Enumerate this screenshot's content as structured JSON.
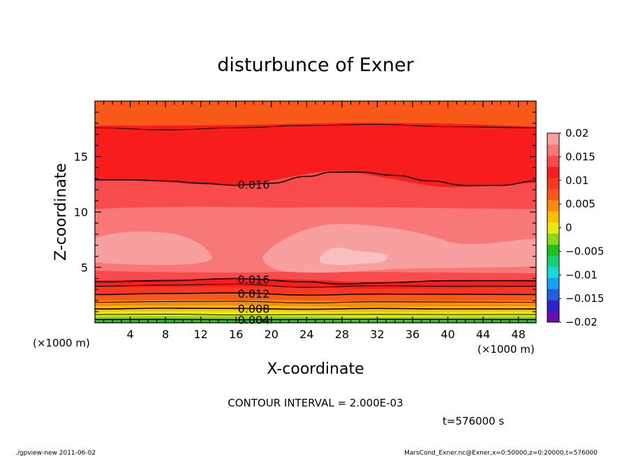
{
  "chart_data": {
    "type": "heatmap",
    "title": "disturbunce of Exner",
    "xlabel": "X-coordinate",
    "ylabel": "Z-coordinate",
    "x_unit_label": "(×1000 m)",
    "y_unit_label": "(×1000 m)",
    "xlim": [
      0,
      50
    ],
    "ylim": [
      0,
      20
    ],
    "x_ticks": [
      4,
      8,
      12,
      16,
      20,
      24,
      28,
      32,
      36,
      40,
      44,
      48
    ],
    "y_ticks": [
      5,
      10,
      15
    ],
    "colorbar": {
      "min": -0.02,
      "max": 0.02,
      "step": 0.0025,
      "labels": [
        "0.02",
        "0.015",
        "0.01",
        "0.005",
        "0",
        "−0.005",
        "−0.01",
        "−0.015",
        "−0.02"
      ],
      "colors": [
        "#6a0dad",
        "#3020c8",
        "#1f5fe0",
        "#1aa0f0",
        "#18d8d8",
        "#18d070",
        "#22c020",
        "#8ad818",
        "#e8e818",
        "#f8c000",
        "#f88a10",
        "#f85818",
        "#f83820",
        "#f81c1c",
        "#f84c4c",
        "#f87878",
        "#f8a0a0"
      ]
    },
    "contour_interval": "2.000E-03",
    "contours": [
      {
        "value": 0.004,
        "label": "0.004",
        "x": [
          0,
          8,
          16,
          24,
          32,
          40,
          50
        ],
        "z": [
          0.3,
          0.32,
          0.28,
          0.3,
          0.32,
          0.3,
          0.3
        ]
      },
      {
        "value": 0.006,
        "label": "",
        "x": [
          0,
          8,
          16,
          24,
          32,
          40,
          50
        ],
        "z": [
          0.75,
          0.78,
          0.72,
          0.74,
          0.76,
          0.74,
          0.75
        ]
      },
      {
        "value": 0.008,
        "label": "0.008",
        "x": [
          0,
          8,
          16,
          24,
          32,
          40,
          50
        ],
        "z": [
          1.25,
          1.32,
          1.3,
          1.22,
          1.3,
          1.26,
          1.25
        ]
      },
      {
        "value": 0.01,
        "label": "",
        "x": [
          0,
          8,
          16,
          24,
          32,
          40,
          50
        ],
        "z": [
          1.85,
          1.92,
          1.95,
          1.8,
          1.9,
          1.88,
          1.85
        ]
      },
      {
        "value": 0.012,
        "label": "0.012",
        "x": [
          0,
          8,
          16,
          24,
          32,
          40,
          50
        ],
        "z": [
          2.55,
          2.65,
          2.7,
          2.5,
          2.6,
          2.58,
          2.55
        ]
      },
      {
        "value": 0.014,
        "label": "",
        "x": [
          0,
          8,
          16,
          24,
          32,
          40,
          50
        ],
        "z": [
          3.3,
          3.4,
          3.5,
          3.2,
          3.35,
          3.3,
          3.3
        ]
      },
      {
        "value": 0.016,
        "label": "0.016",
        "x": [
          0,
          8,
          16,
          24,
          28,
          32,
          40,
          50
        ],
        "z": [
          3.7,
          3.8,
          4.0,
          3.7,
          3.5,
          3.6,
          3.8,
          3.8
        ]
      },
      {
        "value": 0.016,
        "label": "0.016",
        "x": [
          0,
          4,
          8,
          12,
          16,
          20,
          24,
          27,
          30,
          34,
          38,
          42,
          46,
          50
        ],
        "z": [
          12.9,
          12.9,
          12.8,
          12.6,
          12.4,
          12.6,
          13.2,
          13.6,
          13.6,
          13.3,
          12.8,
          12.4,
          12.4,
          12.8
        ]
      },
      {
        "value": 0.014,
        "label": "",
        "x": [
          0,
          8,
          16,
          24,
          32,
          40,
          50
        ],
        "z": [
          17.6,
          17.4,
          17.6,
          17.8,
          17.9,
          17.7,
          17.6
        ]
      }
    ]
  },
  "contour_interval_text": "CONTOUR INTERVAL = 2.000E-03",
  "time_text": "t=576000 s",
  "footer": {
    "left": "./gpview-new  2011-06-02",
    "right": "MarsCond_Exner.nc@Exner,x=0:50000,z=0:20000,t=576000"
  }
}
